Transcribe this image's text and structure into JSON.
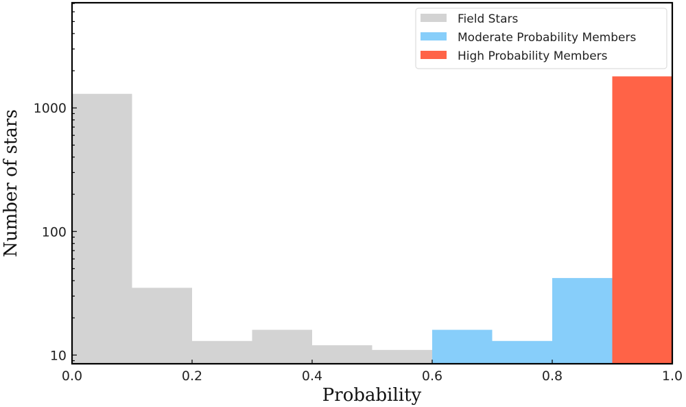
{
  "chart_data": {
    "type": "bar",
    "title": "",
    "xlabel": "Probability",
    "ylabel": "Number of stars",
    "yscale": "log",
    "xlim": [
      0.0,
      1.0
    ],
    "ylim": [
      8.5,
      7100
    ],
    "grid": false,
    "legend_position": "upper right",
    "x_ticks": [
      "0.0",
      "0.2",
      "0.4",
      "0.6",
      "0.8",
      "1.0"
    ],
    "y_ticks": [
      "10",
      "100",
      "1000"
    ],
    "bin_edges": [
      0.0,
      0.1,
      0.2,
      0.3,
      0.4,
      0.5,
      0.6,
      0.7,
      0.8,
      0.9,
      1.0
    ],
    "series": [
      {
        "name": "Field Stars",
        "color": "#d3d3d3",
        "bins": [
          [
            0.0,
            0.1
          ],
          [
            0.1,
            0.2
          ],
          [
            0.2,
            0.3
          ],
          [
            0.3,
            0.4
          ],
          [
            0.4,
            0.5
          ],
          [
            0.5,
            0.6
          ]
        ],
        "values": [
          1300,
          35,
          13,
          16,
          12,
          11
        ]
      },
      {
        "name": "Moderate Probability Members",
        "color": "#87cefa",
        "bins": [
          [
            0.6,
            0.7
          ],
          [
            0.7,
            0.8
          ],
          [
            0.8,
            0.9
          ]
        ],
        "values": [
          16,
          13,
          42
        ]
      },
      {
        "name": "High Probability Members",
        "color": "#ff6347",
        "bins": [
          [
            0.9,
            1.0
          ]
        ],
        "values": [
          1800
        ]
      }
    ]
  }
}
